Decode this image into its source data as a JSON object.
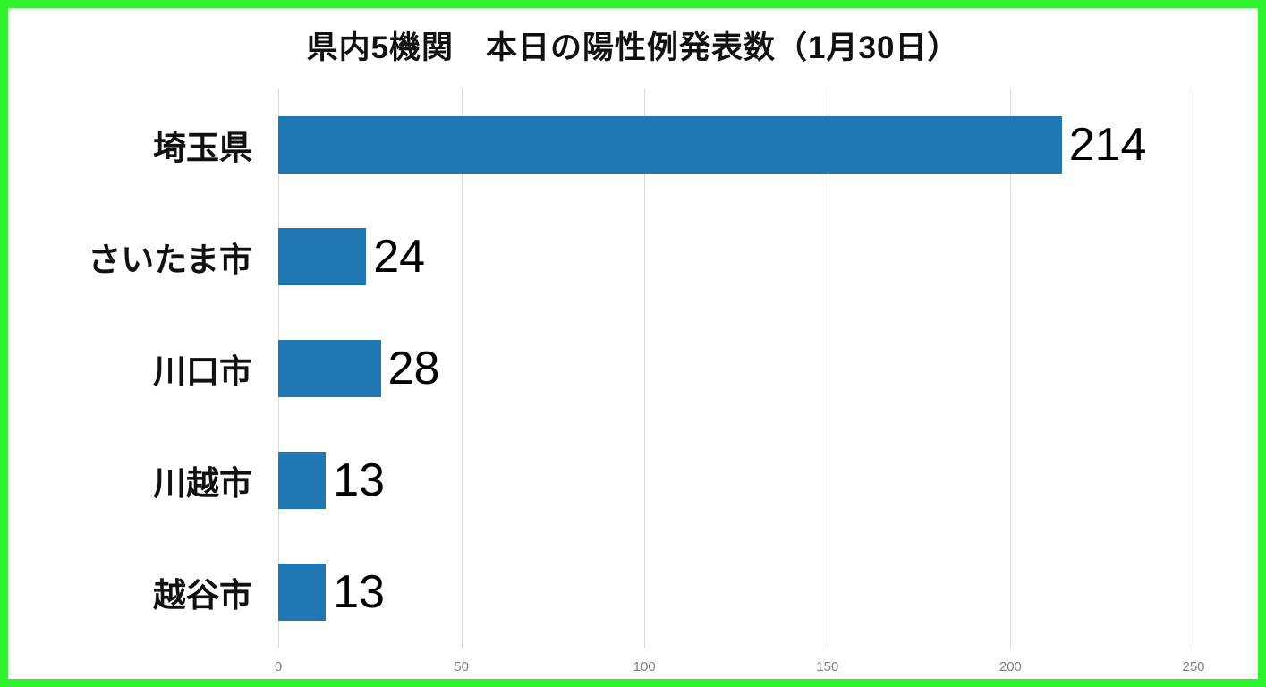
{
  "colors": {
    "bar": "#1F77B4",
    "border": "#2EF32E",
    "grid": "#D9D9D9",
    "tick": "#7F7F7F"
  },
  "chart_data": {
    "type": "bar",
    "orientation": "horizontal",
    "title": "県内5機関　本日の陽性例発表数（1月30日）",
    "categories": [
      "埼玉県",
      "さいたま市",
      "川口市",
      "川越市",
      "越谷市"
    ],
    "values": [
      214,
      24,
      28,
      13,
      13
    ],
    "xlabel": "",
    "ylabel": "",
    "xlim": [
      0,
      250
    ],
    "xticks": [
      0,
      50,
      100,
      150,
      200,
      250
    ],
    "grid": true,
    "legend": false,
    "data_labels": true
  }
}
